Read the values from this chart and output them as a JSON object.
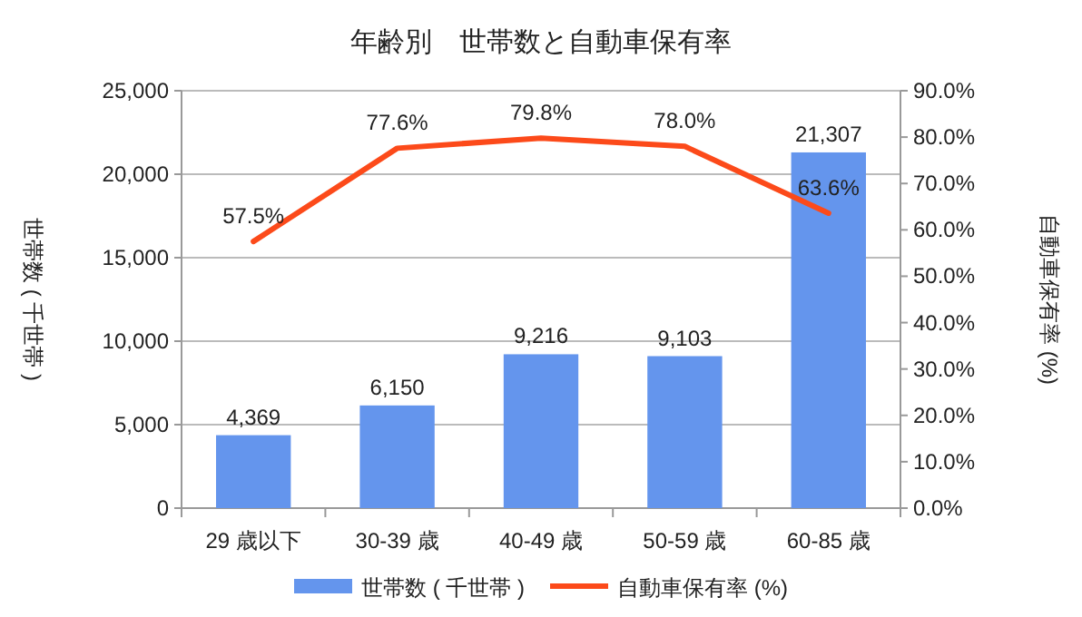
{
  "chart_data": {
    "type": "bar",
    "title": "年齢別　世帯数と自動車保有率",
    "ylabel": "世帯数 ( 千世帯 )",
    "y2label": "自動車保有率 (%)",
    "categories": [
      "29 歳以下",
      "30-39 歳",
      "40-49 歳",
      "50-59 歳",
      "60-85 歳"
    ],
    "series": [
      {
        "name": "世帯数 ( 千世帯 )",
        "color": "#6495ed",
        "values": [
          4369,
          6150,
          9216,
          9103,
          21307
        ],
        "value_labels": [
          "4,369",
          "6,150",
          "9,216",
          "9,103",
          "21,307"
        ]
      },
      {
        "name": "自動車保有率 (%)",
        "type": "line",
        "axis": "y2",
        "color": "#fc4a1a",
        "values": [
          57.5,
          77.6,
          79.8,
          78.0,
          63.6
        ],
        "value_labels": [
          "57.5%",
          "77.6%",
          "79.8%",
          "78.0%",
          "63.6%"
        ]
      }
    ],
    "ylim": [
      0,
      25000
    ],
    "yticks": [
      {
        "value": 0,
        "label": "0"
      },
      {
        "value": 5000,
        "label": "5,000"
      },
      {
        "value": 10000,
        "label": "10,000"
      },
      {
        "value": 15000,
        "label": "15,000"
      },
      {
        "value": 20000,
        "label": "20,000"
      },
      {
        "value": 25000,
        "label": "25,000"
      }
    ],
    "y2lim": [
      0,
      90
    ],
    "y2ticks": [
      {
        "value": 0,
        "label": "0.0%"
      },
      {
        "value": 10,
        "label": "10.0%"
      },
      {
        "value": 20,
        "label": "20.0%"
      },
      {
        "value": 30,
        "label": "30.0%"
      },
      {
        "value": 40,
        "label": "40.0%"
      },
      {
        "value": 50,
        "label": "50.0%"
      },
      {
        "value": 60,
        "label": "60.0%"
      },
      {
        "value": 70,
        "label": "70.0%"
      },
      {
        "value": 80,
        "label": "80.0%"
      },
      {
        "value": 90,
        "label": "90.0%"
      }
    ],
    "grid": "y",
    "legend": "bottom"
  }
}
